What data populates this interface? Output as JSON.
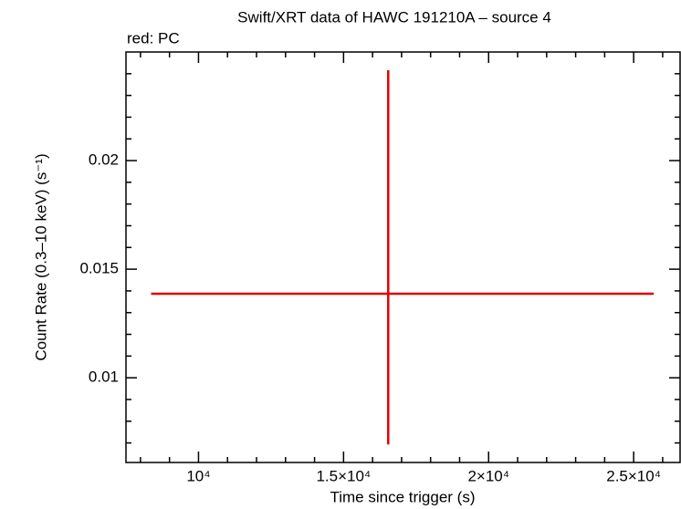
{
  "chart_data": {
    "type": "scatter",
    "title": "Swift/XRT data of HAWC 191210A – source 4",
    "subtitle": "red: PC",
    "xlabel": "Time since trigger (s)",
    "ylabel": "Count Rate (0.3–10 keV) (s⁻¹)",
    "color": "#e00000",
    "x": [
      16540
    ],
    "values": [
      0.01387
    ],
    "xerr_low": [
      8175
    ],
    "xerr_high": [
      9152
    ],
    "yerr_low": [
      0.00694
    ],
    "yerr_high": [
      0.01029
    ],
    "xlim": [
      7500,
      26600
    ],
    "ylim": [
      0.0061,
      0.025
    ],
    "xticks": [
      {
        "value": 10000,
        "label": "10⁴"
      },
      {
        "value": 15000,
        "label": "1.5×10⁴"
      },
      {
        "value": 20000,
        "label": "2×10⁴"
      },
      {
        "value": 25000,
        "label": "2.5×10⁴"
      }
    ],
    "xminorticks": [
      8000,
      9000,
      11000,
      12000,
      13000,
      14000,
      16000,
      17000,
      18000,
      19000,
      21000,
      22000,
      23000,
      24000,
      26000
    ],
    "yticks": [
      0.01,
      0.015,
      0.02
    ],
    "yminorticks": [
      0.007,
      0.008,
      0.009,
      0.011,
      0.012,
      0.013,
      0.014,
      0.016,
      0.017,
      0.018,
      0.019,
      0.021,
      0.022,
      0.023,
      0.024
    ]
  }
}
